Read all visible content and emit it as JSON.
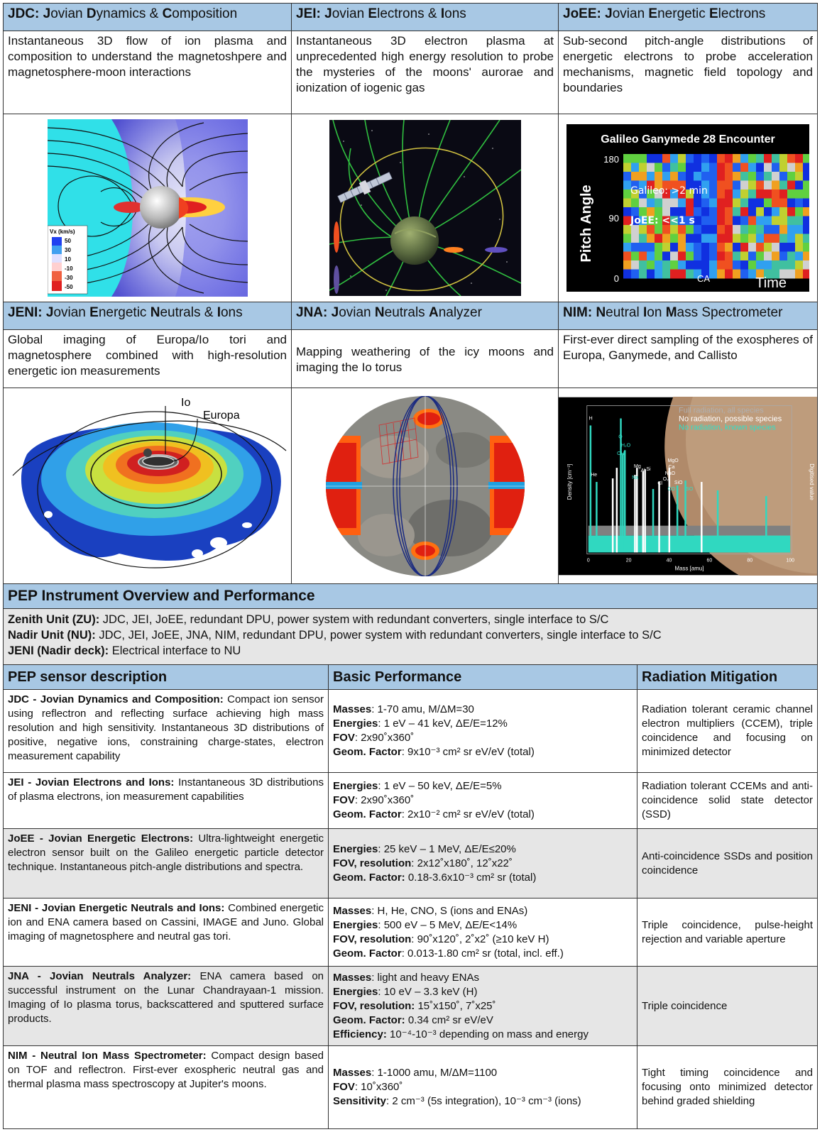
{
  "instruments_row1": [
    {
      "abbr": "JDC:",
      "title_parts": [
        "J",
        "ovian ",
        "D",
        "ynamics & ",
        "C",
        "omposition"
      ],
      "desc": "Instantaneous 3D flow of ion plasma and composition to understand the magnetoshpere and magnetosphere-moon interactions"
    },
    {
      "abbr": "JEI:",
      "title_parts": [
        "J",
        "ovian ",
        "E",
        "lectrons & ",
        "I",
        "ons"
      ],
      "desc": "Instantaneous 3D electron plasma at unprecedented high energy resolution to probe the mysteries of the moons' aurorae and ionization of iogenic gas"
    },
    {
      "abbr": "JoEE:",
      "title_parts": [
        "J",
        "ovian ",
        "E",
        "nergetic ",
        "E",
        "lectrons"
      ],
      "desc": "Sub-second pitch-angle distributions of energetic electrons to probe acceleration mechanisms, magnetic field topology and boundaries"
    }
  ],
  "instruments_row2": [
    {
      "abbr": "JENI:",
      "title_parts": [
        "J",
        "ovian ",
        "E",
        "nergetic ",
        "N",
        "eutrals & ",
        "I",
        "ons"
      ],
      "desc": "Global imaging of Europa/Io tori and magnetosphere combined with high-resolution energetic ion measurements"
    },
    {
      "abbr": "JNA:",
      "title_parts": [
        "J",
        "ovian ",
        "N",
        "eutrals ",
        "A",
        "nalyzer"
      ],
      "desc": "Mapping weathering of the icy moons and imaging the Io torus"
    },
    {
      "abbr": "NIM:",
      "title_parts": [
        "N",
        "eutral ",
        "I",
        "on ",
        "M",
        "ass Spectrometer"
      ],
      "desc": "First-ever direct sampling of the exospheres of Europa, Ganymede, and Callisto"
    }
  ],
  "figures": {
    "jdc": {
      "legend_title": "Vx (km/s)",
      "legend_ticks": [
        "50",
        "30",
        "10",
        "-10",
        "-30",
        "-50"
      ]
    },
    "joee": {
      "title": "Galileo Ganymede 28 Encounter",
      "ylabel": "Pitch Angle",
      "xlabel": "Time",
      "yticks": [
        "180",
        "90",
        "0"
      ],
      "ann1": "Galileo: >2 min",
      "ann2": "JoEE: <<1 s",
      "ca": "CA"
    },
    "jeni": {
      "io": "Io",
      "europa": "Europa"
    },
    "nim": {
      "leg1": "Full radiation, all species",
      "leg2": "No radiation, possible species",
      "leg3": "No radiation, known species",
      "xlabel": "Mass [amu]",
      "ylabel": "Density [cm⁻³]",
      "ylabel2": "Digitised value",
      "xticks": [
        "0",
        "20",
        "40",
        "60",
        "80",
        "100"
      ],
      "species": [
        "H",
        "He",
        "O",
        "H₂O",
        "OH",
        "Mg",
        "Al",
        "Si",
        "Na",
        "MgO",
        "Ca",
        "NaO",
        "SiO",
        "O₂",
        "Cl",
        "CO",
        "SO"
      ]
    }
  },
  "overview": {
    "title": "PEP Instrument Overview and Performance",
    "lines": [
      {
        "label": "Zenith Unit (ZU):",
        "text": " JDC, JEI, JoEE, redundant DPU, power system with redundant converters, single interface to S/C"
      },
      {
        "label": "Nadir Unit (NU):",
        "text": " JDC, JEI, JoEE, JNA, NIM, redundant DPU, power system with redundant converters, single interface to S/C"
      },
      {
        "label": "JENI (Nadir deck):",
        "text": " Electrical interface to NU"
      }
    ]
  },
  "table": {
    "headers": [
      "PEP sensor description",
      "Basic Performance",
      "Radiation Mitigation"
    ],
    "rows": [
      {
        "name": "JDC - Jovian Dynamics and Composition:",
        "desc": " Compact ion sensor using reflectron and reflecting surface achieving high mass resolution and high sensitivity. Instantaneous 3D distributions of positive, negative ions, constraining charge-states, electron measurement capability",
        "perf": [
          {
            "k": "Masses",
            "v": ": 1-70 amu, M/ΔM=30"
          },
          {
            "k": "Energies",
            "v": ": 1 eV – 41 keV, ΔE/E=12%"
          },
          {
            "k": "FOV",
            "v": ": 2x90˚x360˚"
          },
          {
            "k": "Geom. Factor",
            "v": ": 9x10⁻³ cm² sr eV/eV (total)"
          }
        ],
        "rad": "Radiation tolerant ceramic channel electron multipliers (CCEM), triple coincidence and focusing on minimized detector"
      },
      {
        "name": "JEI - Jovian Electrons and Ions:",
        "desc": " Instantaneous 3D distributions of plasma electrons, ion measurement capabilities",
        "perf": [
          {
            "k": "Energies",
            "v": ": 1 eV – 50 keV, ΔE/E=5%"
          },
          {
            "k": "FOV",
            "v": ": 2x90˚x360˚"
          },
          {
            "k": "Geom. Factor",
            "v": ": 2x10⁻² cm² sr eV/eV (total)"
          }
        ],
        "rad": "Radiation tolerant CCEMs and anti-coincidence solid state detector (SSD)"
      },
      {
        "name": "JoEE - Jovian Energetic Electrons:",
        "desc": " Ultra-lightweight energetic electron sensor built on the Galileo energetic particle detector technique. Instantaneous pitch-angle distributions and spectra.",
        "perf": [
          {
            "k": "Energies",
            "v": ": 25 keV – 1 MeV, ΔE/E≤20%"
          },
          {
            "k": "FOV, resolution",
            "v": ": 2x12˚x180˚, 12˚x22˚"
          },
          {
            "k": "Geom. Factor:",
            "v": " 0.18-3.6x10⁻³ cm² sr (total)"
          }
        ],
        "rad": "Anti-coincidence SSDs and position coincidence"
      },
      {
        "name": "JENI - Jovian Energetic Neutrals and Ions:",
        "desc": " Combined energetic ion and ENA camera based on Cassini, IMAGE and Juno. Global imaging of magnetosphere and neutral gas tori.",
        "perf": [
          {
            "k": "Masses",
            "v": ": H, He, CNO, S (ions and ENAs)"
          },
          {
            "k": "Energies",
            "v": ": 500 eV – 5 MeV, ΔE/E<14%"
          },
          {
            "k": "FOV, resolution",
            "v": ": 90˚x120˚, 2˚x2˚ (≥10 keV H)"
          },
          {
            "k": "Geom. Factor",
            "v": ": 0.013-1.80 cm² sr (total, incl. eff.)"
          }
        ],
        "rad": "Triple coincidence, pulse-height rejection and variable aperture"
      },
      {
        "name": "JNA - Jovian Neutrals Analyzer:",
        "desc": " ENA camera based on successful instrument on the Lunar Chandrayaan-1 mission. Imaging of Io plasma torus, backscattered and sputtered surface products.",
        "perf": [
          {
            "k": "Masses",
            "v": ": light and heavy ENAs"
          },
          {
            "k": "Energies",
            "v": ": 10 eV – 3.3 keV (H)"
          },
          {
            "k": "FOV, resolution:",
            "v": " 15˚x150˚, 7˚x25˚"
          },
          {
            "k": "Geom. Factor:",
            "v": " 0.34 cm² sr eV/eV"
          },
          {
            "k": "Efficiency:",
            "v": " 10⁻⁴-10⁻³ depending on mass and energy"
          }
        ],
        "rad": "Triple coincidence"
      },
      {
        "name": "NIM - Neutral Ion Mass Spectrometer:",
        "desc": " Compact design based on TOF and reflectron. First-ever exospheric neutral gas and thermal plasma mass spectroscopy at Jupiter's moons.",
        "perf": [
          {
            "k": "Masses",
            "v": ": 1-1000 amu, M/ΔM=1100"
          },
          {
            "k": "FOV",
            "v": ": 10˚x360˚"
          },
          {
            "k": "Sensitivity",
            "v": ": 2 cm⁻³ (5s integration), 10⁻³ cm⁻³ (ions)"
          }
        ],
        "rad": "Tight timing coincidence and focusing onto minimized detector behind graded shielding"
      }
    ]
  },
  "colors": {
    "header_blue": "#a8c8e4",
    "row_gray": "#e6e6e6"
  }
}
